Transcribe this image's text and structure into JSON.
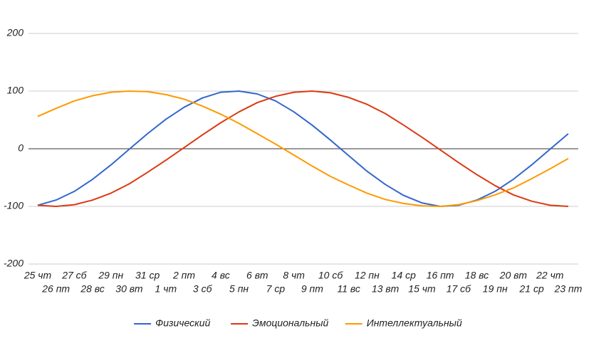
{
  "chart_data": {
    "type": "line",
    "categories": [
      "25 чт",
      "26 пт",
      "27 сб",
      "28 вс",
      "29 пн",
      "30 вт",
      "31 ср",
      "1 чт",
      "2 пт",
      "3 сб",
      "4 вс",
      "5 пн",
      "6 вт",
      "7 ср",
      "8 чт",
      "9 пт",
      "10 сб",
      "11 вс",
      "12 пн",
      "13 вт",
      "14 ср",
      "15 чт",
      "16 пт",
      "17 сб",
      "18 вс",
      "19 пн",
      "20 вт",
      "21 ср",
      "22 чт",
      "23 пт"
    ],
    "series": [
      {
        "name": "Физический",
        "color": "#3366cc",
        "values": [
          -98,
          -89,
          -74,
          -53,
          -28,
          -1,
          26,
          51,
          72,
          88,
          98,
          100,
          95,
          83,
          64,
          41,
          15,
          -12,
          -39,
          -62,
          -81,
          -94,
          -100,
          -98,
          -89,
          -74,
          -53,
          -28,
          -1,
          26
        ]
      },
      {
        "name": "Эмоциональный",
        "color": "#dc3912",
        "values": [
          -98,
          -100,
          -97,
          -89,
          -77,
          -61,
          -41,
          -20,
          2,
          24,
          45,
          64,
          80,
          91,
          98,
          100,
          97,
          89,
          77,
          61,
          41,
          20,
          -2,
          -24,
          -45,
          -64,
          -80,
          -91,
          -98,
          -100
        ]
      },
      {
        "name": "Интеллектуальный",
        "color": "#ff9900",
        "values": [
          56,
          70,
          83,
          92,
          98,
          100,
          99,
          94,
          86,
          74,
          60,
          44,
          26,
          8,
          -11,
          -30,
          -48,
          -63,
          -77,
          -88,
          -95,
          -99,
          -100,
          -97,
          -90,
          -80,
          -68,
          -52,
          -35,
          -17
        ]
      }
    ],
    "ylim": [
      -200,
      200
    ],
    "yticks": [
      -200,
      -100,
      0,
      100,
      200
    ],
    "grid": true,
    "legend": "bottom"
  }
}
